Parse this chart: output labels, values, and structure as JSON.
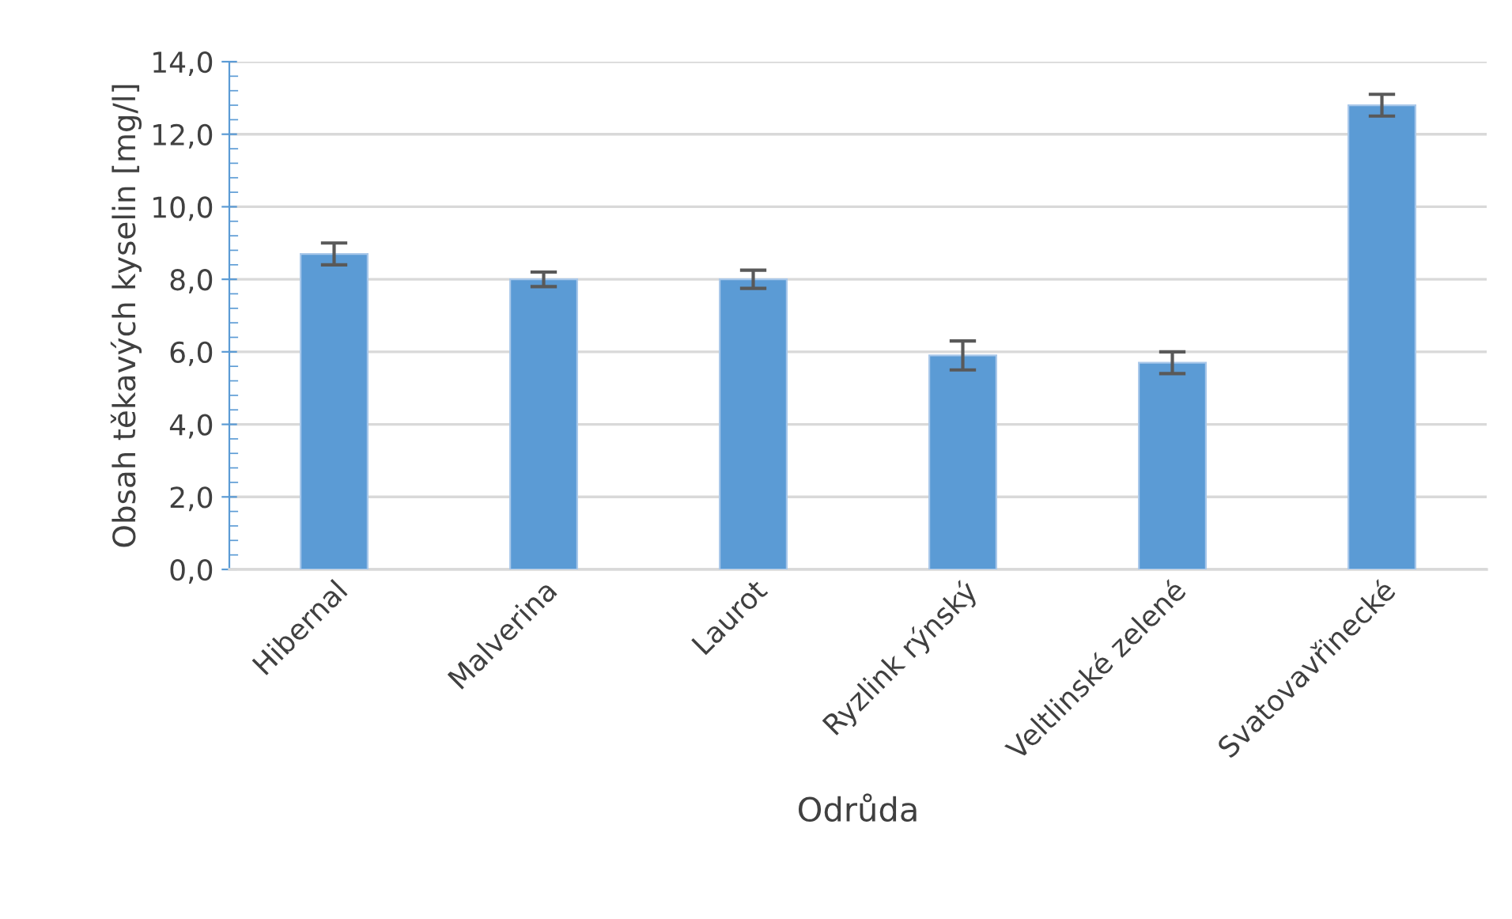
{
  "chart_data": {
    "type": "bar",
    "xlabel": "Odrůda",
    "ylabel": "Obsah těkavých kyselin [mg/l]",
    "categories": [
      "Hibernal",
      "Malverina",
      "Laurot",
      "Ryzlink rýnský",
      "Veltlinské zelené",
      "Svatovavřinecké"
    ],
    "values": [
      8.7,
      8.0,
      8.0,
      5.9,
      5.7,
      12.8
    ],
    "errors": [
      0.3,
      0.2,
      0.25,
      0.4,
      0.3,
      0.3
    ],
    "color": "#5b9bd5",
    "ylim": [
      0,
      14
    ],
    "yticks": [
      {
        "value": 0,
        "label": "0,0"
      },
      {
        "value": 2,
        "label": "2,0"
      },
      {
        "value": 4,
        "label": "4,0"
      },
      {
        "value": 6,
        "label": "6,0"
      },
      {
        "value": 8,
        "label": "8,0"
      },
      {
        "value": 10,
        "label": "10,0"
      },
      {
        "value": 12,
        "label": "12,0"
      },
      {
        "value": 14,
        "label": "14,0"
      }
    ],
    "grid": "y",
    "legend": false
  }
}
